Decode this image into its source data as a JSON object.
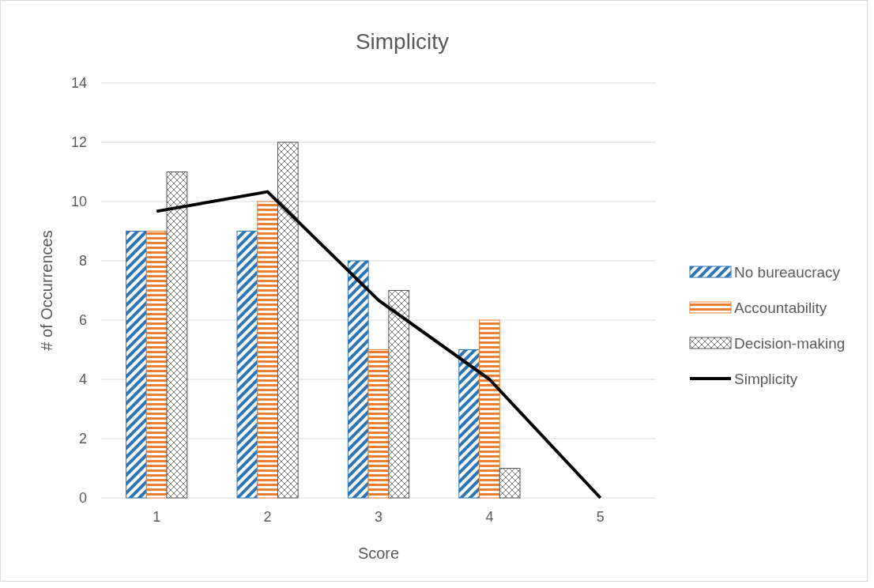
{
  "chart_data": {
    "type": "bar",
    "title": "Simplicity",
    "xlabel": "Score",
    "ylabel": "# of Occurrences",
    "categories": [
      "1",
      "2",
      "3",
      "4",
      "5"
    ],
    "series": [
      {
        "name": "No bureaucracy",
        "color": "#2e75b6",
        "values": [
          9,
          9,
          8,
          5,
          0
        ]
      },
      {
        "name": "Accountability",
        "color": "#ed7d31",
        "values": [
          9,
          10,
          5,
          6,
          0
        ]
      },
      {
        "name": "Decision-making",
        "color": "#595959",
        "values": [
          11,
          12,
          7,
          1,
          0
        ]
      },
      {
        "name": "Simplicity",
        "type": "line",
        "color": "#000000",
        "values": [
          9.67,
          10.33,
          6.67,
          4,
          0
        ]
      }
    ],
    "ylim": [
      0,
      14
    ],
    "yticks": [
      0,
      2,
      4,
      6,
      8,
      10,
      12,
      14
    ],
    "grid": "y",
    "legend": "right",
    "marker": "none",
    "line_style": "solid"
  }
}
